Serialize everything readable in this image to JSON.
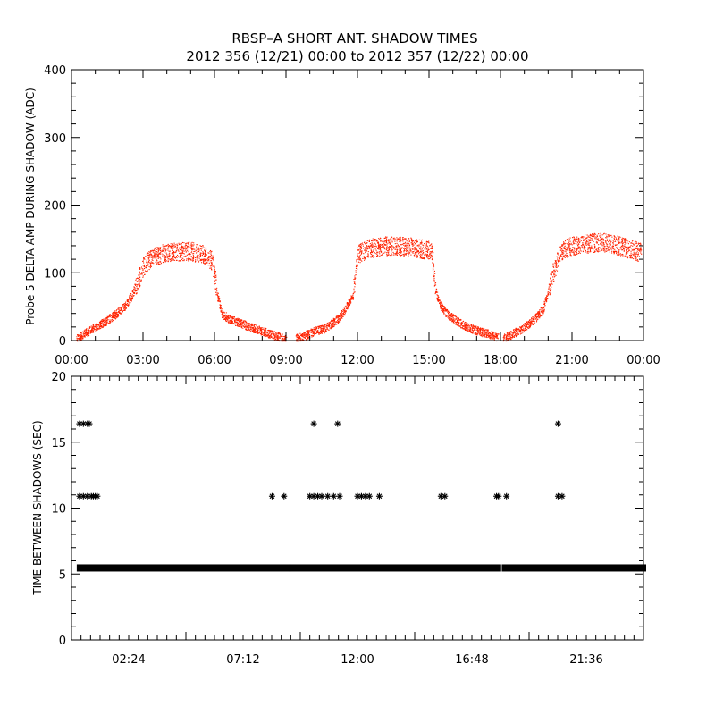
{
  "chart_data": [
    {
      "type": "scatter",
      "title": "RBSP–A SHORT ANT. SHADOW TIMES",
      "subtitle": "2012 356 (12/21) 00:00 to 2012 357 (12/22) 00:00",
      "ylabel": "Probe 5 DELTA AMP DURING SHADOW (ADC)",
      "xlabel": "",
      "xlim": [
        "00:00",
        "24:00"
      ],
      "ylim": [
        0,
        400
      ],
      "x_ticks": [
        "00:00",
        "03:00",
        "06:00",
        "09:00",
        "12:00",
        "15:00",
        "18:00",
        "21:00",
        "00:00"
      ],
      "y_ticks": [
        "0",
        "100",
        "200",
        "300",
        "400"
      ],
      "color": "#ff2200",
      "series": [
        {
          "x": [
            0.2,
            0.6,
            1.0,
            1.4,
            1.8,
            2.2,
            2.5,
            2.8,
            3.0,
            3.3,
            3.6,
            4.0,
            4.5,
            5.0,
            5.5,
            5.9,
            6.1,
            6.3,
            6.6,
            7.0,
            7.5,
            8.0,
            8.5,
            9.0
          ],
          "y": [
            3,
            12,
            20,
            28,
            38,
            50,
            65,
            90,
            110,
            120,
            126,
            130,
            132,
            132,
            128,
            118,
            70,
            40,
            32,
            27,
            20,
            14,
            8,
            2
          ]
        },
        {
          "x": [
            9.4,
            9.8,
            10.2,
            10.6,
            10.9,
            11.2,
            11.4,
            11.6,
            11.8,
            12.0,
            12.3,
            12.7,
            13.2,
            13.8,
            14.3,
            14.8,
            15.1,
            15.3,
            15.5,
            15.8,
            16.2,
            16.6,
            17.0,
            17.5,
            17.9
          ],
          "y": [
            3,
            8,
            14,
            18,
            25,
            33,
            42,
            55,
            68,
            128,
            133,
            138,
            140,
            140,
            138,
            135,
            132,
            70,
            50,
            38,
            28,
            20,
            15,
            10,
            5
          ]
        },
        {
          "x": [
            18.1,
            18.5,
            18.9,
            19.2,
            19.5,
            19.8,
            20.0,
            20.2,
            20.4,
            20.6,
            20.8,
            21.0,
            21.5,
            22.0,
            22.5,
            23.0,
            23.5,
            23.9
          ],
          "y": [
            3,
            10,
            18,
            25,
            35,
            48,
            75,
            100,
            120,
            132,
            138,
            140,
            143,
            145,
            145,
            140,
            135,
            130
          ]
        }
      ],
      "noise": 14,
      "spread": 0.12
    },
    {
      "type": "scatter",
      "ylabel": "TIME BETWEEN SHADOWS (SEC)",
      "xlabel": "",
      "xlim": [
        "00:00",
        "24:00"
      ],
      "ylim": [
        0,
        20
      ],
      "x_ticks": [
        "02:24",
        "07:12",
        "12:00",
        "16:48",
        "21:36"
      ],
      "y_ticks": [
        "0",
        "5",
        "10",
        "15",
        "20"
      ],
      "color": "#000000",
      "marker": "asterisk",
      "baseline": {
        "y": 5.46,
        "segments": [
          [
            "00:20",
            "09:05"
          ],
          [
            "09:15",
            "17:55"
          ],
          [
            "18:10",
            "24:00"
          ]
        ]
      },
      "series": [
        {
          "x": [
            "00:20",
            "00:30",
            "00:40",
            "00:50",
            "00:55",
            "01:00",
            "01:05",
            "08:25",
            "08:55",
            "10:00",
            "10:10",
            "10:20",
            "10:30",
            "10:45",
            "11:00",
            "11:15",
            "12:00",
            "12:10",
            "12:20",
            "12:30",
            "12:55",
            "15:30",
            "15:40",
            "17:50",
            "17:55",
            "18:15",
            "20:25",
            "20:35"
          ],
          "y": [
            10.9,
            10.9,
            10.9,
            10.9,
            10.9,
            10.9,
            10.9,
            10.9,
            10.9,
            10.9,
            10.9,
            10.9,
            10.9,
            10.9,
            10.9,
            10.9,
            10.9,
            10.9,
            10.9,
            10.9,
            10.9,
            10.9,
            10.9,
            10.9,
            10.9,
            10.9,
            10.9,
            10.9
          ]
        },
        {
          "x": [
            "00:20",
            "00:30",
            "00:40",
            "00:45",
            "10:10",
            "11:10",
            "20:25"
          ],
          "y": [
            16.4,
            16.4,
            16.4,
            16.4,
            16.4,
            16.4,
            16.4
          ]
        }
      ]
    }
  ]
}
